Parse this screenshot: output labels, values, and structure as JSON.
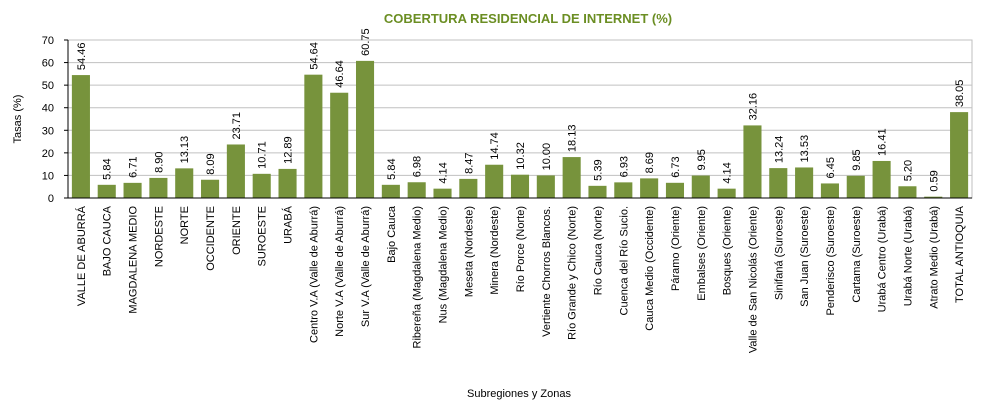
{
  "chart_data": {
    "type": "bar",
    "title": "COBERTURA RESIDENCIAL DE INTERNET (%)",
    "xlabel": "Subregiones y Zonas",
    "ylabel": "Tasas (%)",
    "ylim": [
      0,
      70
    ],
    "yticks": [
      "0",
      "10",
      "20",
      "30",
      "40",
      "50",
      "60",
      "70"
    ],
    "grid": true,
    "bar_color": "#77933c",
    "title_color": "#6b8e23",
    "categories": [
      "VALLE DE ABURRÁ",
      "BAJO CAUCA",
      "MAGDALENA MEDIO",
      "NORDESTE",
      "NORTE",
      "OCCIDENTE",
      "ORIENTE",
      "SUROESTE",
      "URABÁ",
      "Centro V.A (Valle de Aburrá)",
      "Norte V.A (Valle de Aburrá)",
      "Sur V.A (Valle de Aburrá)",
      "Bajo Cauca",
      "Ribereña  (Magdalena Medio)",
      "Nus  (Magdalena Medio)",
      "Meseta  (Nordeste)",
      "Minera  (Nordeste)",
      "Río Porce  (Norte)",
      "Vertiente Chorros Blancos.",
      "Río Grande y Chico  (Norte)",
      "Río Cauca  (Norte)",
      "Cuenca del Río Sucio.",
      "Cauca Medio  (Occidente)",
      "Páramo  (Oriente)",
      "Embalses  (Oriente)",
      "Bosques  (Oriente)",
      "Valle de San Nicolás (Oriente)",
      "Sinifaná  (Suroeste)",
      "San Juan  (Suroeste)",
      "Penderisco  (Suroeste)",
      "Cartama  (Suroeste)",
      "Urabá Centro  (Urabá)",
      "Urabá Norte  (Urabá)",
      "Atrato Medio  (Urabá)",
      "TOTAL ANTIOQUIA"
    ],
    "values": [
      54.46,
      5.84,
      6.71,
      8.9,
      13.13,
      8.09,
      23.71,
      10.71,
      12.89,
      54.64,
      46.64,
      60.75,
      5.84,
      6.98,
      4.14,
      8.47,
      14.74,
      10.32,
      10.0,
      18.13,
      5.39,
      6.93,
      8.69,
      6.73,
      9.95,
      4.14,
      32.16,
      13.24,
      13.53,
      6.45,
      9.85,
      16.41,
      5.2,
      0.59,
      38.05
    ],
    "value_labels": [
      "54.46",
      "5.84",
      "6.71",
      "8.90",
      "13.13",
      "8.09",
      "23.71",
      "10.71",
      "12.89",
      "54.64",
      "46.64",
      "60.75",
      "5.84",
      "6.98",
      "4.14",
      "8.47",
      "14.74",
      "10.32",
      "10.00",
      "18.13",
      "5.39",
      "6.93",
      "8.69",
      "6.73",
      "9.95",
      "4.14",
      "32.16",
      "13.24",
      "13.53",
      "6.45",
      "9.85",
      "16.41",
      "5.20",
      "0.59",
      "38.05"
    ]
  }
}
